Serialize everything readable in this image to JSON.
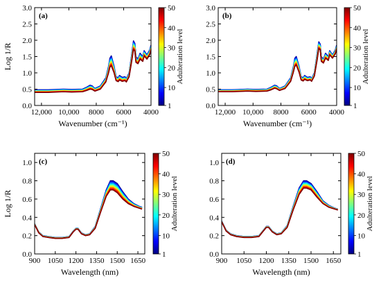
{
  "colorbar": {
    "label": "Adulteration level",
    "ticks": [
      1,
      10,
      20,
      30,
      40,
      50
    ],
    "range": [
      1,
      50
    ],
    "colormap": "jet",
    "colors": [
      "#00007f",
      "#0000ff",
      "#007fff",
      "#00ffff",
      "#7fff7f",
      "#ffff00",
      "#ff7f00",
      "#ff0000",
      "#7f0000"
    ]
  },
  "chart_data": [
    {
      "type": "line",
      "panel": "(a)",
      "xlabel": "Wavenumber (cm⁻¹)",
      "ylabel": "Log 1/R",
      "xlim": [
        12500,
        4000
      ],
      "ylim": [
        0,
        3.0
      ],
      "xticks": [
        12000,
        10000,
        8000,
        6000,
        4000
      ],
      "xtick_labels": [
        "12,000",
        "10,000",
        "8000",
        "6000",
        "4000"
      ],
      "yticks": [
        0,
        0.5,
        1.0,
        1.5,
        2.0,
        2.5,
        3.0
      ],
      "ytick_labels": [
        "0.0",
        "0.5",
        "1.0",
        "1.5",
        "2.0",
        "2.5",
        "3.0"
      ],
      "series_levels": [
        1,
        5,
        10,
        15,
        20,
        25,
        30,
        35,
        40,
        45,
        50
      ],
      "series_low": {
        "x": [
          12500,
          11500,
          10400,
          9800,
          9000,
          8700,
          8450,
          8300,
          8100,
          7700,
          7300,
          7100,
          7000,
          6900,
          6700,
          6550,
          6400,
          6300,
          6100,
          5900,
          5800,
          5600,
          5400,
          5280,
          5180,
          5100,
          4950,
          4800,
          4600,
          4500,
          4300,
          4100,
          4000
        ],
        "y": [
          0.48,
          0.48,
          0.5,
          0.49,
          0.5,
          0.56,
          0.62,
          0.6,
          0.52,
          0.6,
          0.85,
          1.2,
          1.45,
          1.52,
          1.2,
          0.88,
          0.85,
          0.92,
          0.86,
          0.88,
          0.82,
          1.0,
          1.6,
          1.98,
          1.9,
          1.5,
          1.42,
          1.6,
          1.5,
          1.68,
          1.55,
          1.7,
          1.85
        ]
      },
      "series_high": {
        "x": [
          12500,
          11500,
          10400,
          9800,
          9000,
          8700,
          8450,
          8300,
          8100,
          7700,
          7300,
          7100,
          7000,
          6900,
          6700,
          6550,
          6400,
          6300,
          6100,
          5900,
          5800,
          5600,
          5400,
          5280,
          5180,
          5100,
          4950,
          4800,
          4600,
          4500,
          4300,
          4100,
          4000
        ],
        "y": [
          0.4,
          0.4,
          0.42,
          0.41,
          0.42,
          0.46,
          0.5,
          0.49,
          0.44,
          0.5,
          0.72,
          1.0,
          1.18,
          1.22,
          1.0,
          0.76,
          0.73,
          0.78,
          0.74,
          0.76,
          0.72,
          0.88,
          1.38,
          1.72,
          1.66,
          1.32,
          1.28,
          1.42,
          1.35,
          1.52,
          1.42,
          1.55,
          1.7
        ]
      }
    },
    {
      "type": "line",
      "panel": "(b)",
      "xlabel": "Wavenumber (cm⁻¹)",
      "ylabel": "",
      "xlim": [
        12500,
        4000
      ],
      "ylim": [
        0,
        3.0
      ],
      "xticks": [
        12000,
        10000,
        8000,
        6000,
        4000
      ],
      "xtick_labels": [
        "12,000",
        "10,000",
        "8000",
        "6000",
        "4000"
      ],
      "yticks": [
        0,
        0.5,
        1.0,
        1.5,
        2.0,
        2.5,
        3.0
      ],
      "ytick_labels": [
        "0.0",
        "0.5",
        "1.0",
        "1.5",
        "2.0",
        "2.5",
        "3.0"
      ],
      "series_levels": [
        1,
        5,
        10,
        15,
        20,
        25,
        30,
        35,
        40,
        45,
        50
      ],
      "series_low": {
        "x": [
          12500,
          11500,
          10400,
          9800,
          9000,
          8700,
          8450,
          8300,
          8100,
          7700,
          7300,
          7100,
          7000,
          6900,
          6700,
          6550,
          6400,
          6300,
          6100,
          5900,
          5800,
          5600,
          5400,
          5280,
          5180,
          5100,
          4950,
          4800,
          4600,
          4500,
          4300,
          4100,
          4000
        ],
        "y": [
          0.48,
          0.48,
          0.5,
          0.49,
          0.5,
          0.56,
          0.62,
          0.6,
          0.52,
          0.6,
          0.85,
          1.2,
          1.45,
          1.5,
          1.2,
          0.88,
          0.85,
          0.92,
          0.86,
          0.88,
          0.82,
          1.0,
          1.6,
          1.95,
          1.88,
          1.5,
          1.42,
          1.6,
          1.5,
          1.68,
          1.55,
          1.7,
          1.85
        ]
      },
      "series_high": {
        "x": [
          12500,
          11500,
          10400,
          9800,
          9000,
          8700,
          8450,
          8300,
          8100,
          7700,
          7300,
          7100,
          7000,
          6900,
          6700,
          6550,
          6400,
          6300,
          6100,
          5900,
          5800,
          5600,
          5400,
          5280,
          5180,
          5100,
          4950,
          4800,
          4600,
          4500,
          4300,
          4100,
          4000
        ],
        "y": [
          0.42,
          0.42,
          0.44,
          0.43,
          0.44,
          0.48,
          0.53,
          0.51,
          0.46,
          0.52,
          0.74,
          1.03,
          1.2,
          1.24,
          1.02,
          0.78,
          0.75,
          0.8,
          0.76,
          0.78,
          0.74,
          0.9,
          1.4,
          1.75,
          1.7,
          1.35,
          1.3,
          1.45,
          1.38,
          1.55,
          1.45,
          1.58,
          1.72
        ]
      }
    },
    {
      "type": "line",
      "panel": "(c)",
      "xlabel": "Wavelength (nm)",
      "ylabel": "Log 1/R",
      "xlim": [
        900,
        1700
      ],
      "ylim": [
        0,
        1.1
      ],
      "xticks": [
        900,
        1050,
        1200,
        1350,
        1500,
        1650
      ],
      "xtick_labels": [
        "900",
        "1050",
        "1200",
        "1350",
        "1500",
        "1650"
      ],
      "yticks": [
        0,
        0.2,
        0.4,
        0.6,
        0.8,
        1.0
      ],
      "ytick_labels": [
        "0.0",
        "0.2",
        "0.4",
        "0.6",
        "0.8",
        "1.0"
      ],
      "series_levels": [
        1,
        5,
        10,
        15,
        20,
        25,
        30,
        35,
        40,
        45,
        50
      ],
      "series_low": {
        "x": [
          900,
          930,
          960,
          1000,
          1050,
          1100,
          1150,
          1180,
          1200,
          1215,
          1240,
          1270,
          1300,
          1340,
          1380,
          1420,
          1450,
          1470,
          1500,
          1540,
          1580,
          1620,
          1660,
          1680
        ],
        "y": [
          0.33,
          0.24,
          0.2,
          0.19,
          0.18,
          0.18,
          0.19,
          0.25,
          0.28,
          0.28,
          0.23,
          0.21,
          0.22,
          0.3,
          0.5,
          0.7,
          0.8,
          0.8,
          0.77,
          0.68,
          0.6,
          0.55,
          0.52,
          0.51
        ]
      },
      "series_high": {
        "x": [
          900,
          930,
          960,
          1000,
          1050,
          1100,
          1150,
          1180,
          1200,
          1215,
          1240,
          1270,
          1300,
          1340,
          1380,
          1420,
          1450,
          1470,
          1500,
          1540,
          1580,
          1620,
          1660,
          1680
        ],
        "y": [
          0.32,
          0.23,
          0.19,
          0.18,
          0.17,
          0.17,
          0.18,
          0.24,
          0.27,
          0.27,
          0.22,
          0.2,
          0.21,
          0.28,
          0.46,
          0.63,
          0.7,
          0.7,
          0.67,
          0.6,
          0.55,
          0.52,
          0.5,
          0.49
        ]
      }
    },
    {
      "type": "line",
      "panel": "(d)",
      "xlabel": "Wavelength (nm)",
      "ylabel": "",
      "xlim": [
        900,
        1700
      ],
      "ylim": [
        0,
        1.1
      ],
      "xticks": [
        900,
        1050,
        1200,
        1350,
        1500,
        1650
      ],
      "xtick_labels": [
        "900",
        "1050",
        "1200",
        "1350",
        "1500",
        "1650"
      ],
      "yticks": [
        0,
        0.2,
        0.4,
        0.6,
        0.8,
        1.0
      ],
      "ytick_labels": [
        "0.0",
        "0.2",
        "0.4",
        "0.6",
        "0.8",
        "1.0"
      ],
      "series_levels": [
        1,
        5,
        10,
        15,
        20,
        25,
        30,
        35,
        40,
        45,
        50
      ],
      "series_low": {
        "x": [
          900,
          930,
          960,
          1000,
          1050,
          1100,
          1150,
          1180,
          1200,
          1215,
          1240,
          1270,
          1300,
          1340,
          1380,
          1420,
          1450,
          1470,
          1500,
          1540,
          1580,
          1620,
          1660,
          1680
        ],
        "y": [
          0.36,
          0.26,
          0.22,
          0.2,
          0.19,
          0.19,
          0.2,
          0.26,
          0.3,
          0.3,
          0.25,
          0.22,
          0.23,
          0.31,
          0.52,
          0.72,
          0.8,
          0.8,
          0.77,
          0.68,
          0.58,
          0.53,
          0.5,
          0.49
        ]
      },
      "series_high": {
        "x": [
          900,
          930,
          960,
          1000,
          1050,
          1100,
          1150,
          1180,
          1200,
          1215,
          1240,
          1270,
          1300,
          1340,
          1380,
          1420,
          1450,
          1470,
          1500,
          1540,
          1580,
          1620,
          1660,
          1680
        ],
        "y": [
          0.35,
          0.25,
          0.21,
          0.19,
          0.18,
          0.18,
          0.19,
          0.25,
          0.29,
          0.29,
          0.24,
          0.21,
          0.22,
          0.29,
          0.48,
          0.65,
          0.72,
          0.72,
          0.7,
          0.62,
          0.55,
          0.51,
          0.49,
          0.48
        ]
      }
    }
  ]
}
